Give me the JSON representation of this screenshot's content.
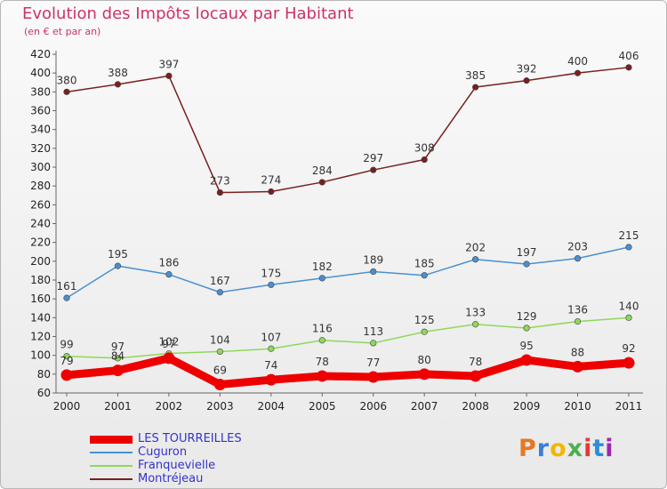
{
  "header": {
    "title": "Evolution des Impôts locaux par Habitant",
    "subtitle": "(en € et par an)"
  },
  "logo": {
    "text": "Proxiti",
    "colors": [
      "#e87722",
      "#3a7fd5",
      "#f2b705",
      "#4caf50",
      "#e53935",
      "#2a8fd8",
      "#9c27b0"
    ]
  },
  "colors": {
    "title": "#cc3366",
    "legend_text": "#3333cc",
    "axis": "#666666",
    "grid": "#dddddd",
    "value_label": "#333333"
  },
  "chart_data": {
    "type": "line",
    "title": "Evolution des Impôts locaux par Habitant",
    "subtitle": "(en € et par an)",
    "xlabel": "",
    "ylabel": "",
    "x": [
      "2000",
      "2001",
      "2002",
      "2003",
      "2004",
      "2005",
      "2006",
      "2007",
      "2008",
      "2009",
      "2010",
      "2011"
    ],
    "ylim": [
      60,
      420
    ],
    "yticks": [
      60,
      80,
      100,
      120,
      140,
      160,
      180,
      200,
      220,
      240,
      260,
      280,
      300,
      320,
      340,
      360,
      380,
      400,
      420
    ],
    "grid": false,
    "legend_position": "bottom-left",
    "series": [
      {
        "name": "LES TOURREILLES",
        "color": "#ee0000",
        "values": [
          79,
          84,
          97,
          69,
          74,
          78,
          77,
          80,
          78,
          95,
          88,
          92
        ],
        "emphasis": true
      },
      {
        "name": "Cuguron",
        "color": "#4a90d0",
        "values": [
          161,
          195,
          186,
          167,
          175,
          182,
          189,
          185,
          202,
          197,
          203,
          215
        ]
      },
      {
        "name": "Franquevielle",
        "color": "#8fd85a",
        "values": [
          99,
          97,
          102,
          104,
          107,
          116,
          113,
          125,
          133,
          129,
          136,
          140
        ]
      },
      {
        "name": "Montréjeau",
        "color": "#7a1f1f",
        "values": [
          380,
          388,
          397,
          273,
          274,
          284,
          297,
          308,
          385,
          392,
          400,
          406
        ]
      }
    ]
  }
}
